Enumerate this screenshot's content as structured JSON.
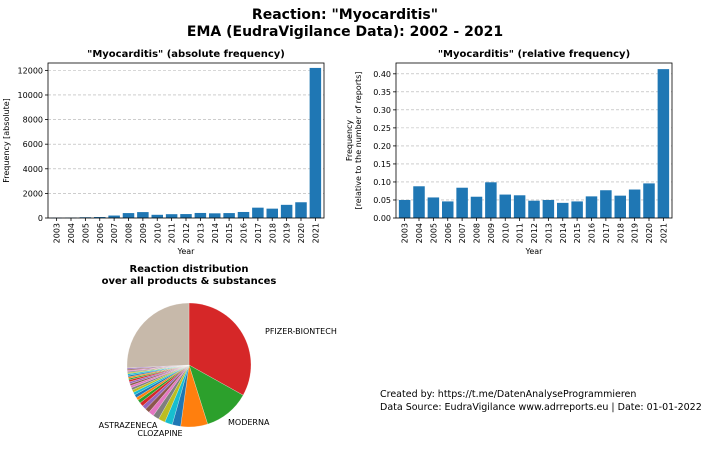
{
  "title_line1": "Reaction: \"Myocarditis\"",
  "title_line2": "EMA (EudraVigilance Data): 2002 - 2021",
  "credits": {
    "line1": "Created by: https://t.me/DatenAnalyseProgrammieren",
    "line2": "Data Source: EudraVigilance www.adrreports.eu | Date: 01-01-2022"
  },
  "colors": {
    "bar": "#1f77b4",
    "grid": "#b0b0b0"
  },
  "chart_data": [
    {
      "type": "bar",
      "title": "\"Myocarditis\" (absolute frequency)",
      "xlabel": "Year",
      "ylabel": "Frequency [absolute]",
      "categories": [
        "2003",
        "2004",
        "2005",
        "2006",
        "2007",
        "2008",
        "2009",
        "2010",
        "2011",
        "2012",
        "2013",
        "2014",
        "2015",
        "2016",
        "2017",
        "2018",
        "2019",
        "2020",
        "2021"
      ],
      "values": [
        20,
        30,
        60,
        80,
        200,
        400,
        480,
        260,
        310,
        320,
        410,
        380,
        400,
        490,
        840,
        760,
        1070,
        1280,
        12200
      ],
      "ylim": [
        0,
        12600
      ],
      "yticks": [
        0,
        2000,
        4000,
        6000,
        8000,
        10000,
        12000
      ],
      "ytick_labels": [
        "0",
        "2000",
        "4000",
        "6000",
        "8000",
        "10000",
        "12000"
      ],
      "grid": "y-dashed"
    },
    {
      "type": "bar",
      "title": "\"Myocarditis\" (relative frequency)",
      "xlabel": "Year",
      "ylabel": [
        "Frequency",
        "[relative to the number of reports]"
      ],
      "categories": [
        "2003",
        "2004",
        "2005",
        "2006",
        "2007",
        "2008",
        "2009",
        "2010",
        "2011",
        "2012",
        "2013",
        "2014",
        "2015",
        "2016",
        "2017",
        "2018",
        "2019",
        "2020",
        "2021"
      ],
      "values": [
        0.05,
        0.088,
        0.057,
        0.046,
        0.084,
        0.059,
        0.099,
        0.065,
        0.063,
        0.048,
        0.05,
        0.042,
        0.046,
        0.06,
        0.077,
        0.062,
        0.079,
        0.096,
        0.413
      ],
      "ylim": [
        0,
        0.43
      ],
      "yticks": [
        0,
        0.05,
        0.1,
        0.15,
        0.2,
        0.25,
        0.3,
        0.35,
        0.4
      ],
      "ytick_labels": [
        "0.00",
        "0.05",
        "0.10",
        "0.15",
        "0.20",
        "0.25",
        "0.30",
        "0.35",
        "0.40"
      ],
      "grid": "y-dashed"
    },
    {
      "type": "pie",
      "title": [
        "Reaction distribution",
        "over all products & substances"
      ],
      "slices": [
        {
          "label": "PFIZER-BIONTECH",
          "value": 33.0,
          "color": "#d62728"
        },
        {
          "label": "MODERNA",
          "value": 12.0,
          "color": "#2ca02c"
        },
        {
          "label": "CLOZAPINE",
          "value": 7.0,
          "color": "#ff7f0e"
        },
        {
          "label": "ASTRAZENECA",
          "value": 2.2,
          "color": "#1f77b4"
        },
        {
          "label": "",
          "value": 2.0,
          "color": "#17becf"
        },
        {
          "label": "",
          "value": 1.8,
          "color": "#bcbd22"
        },
        {
          "label": "",
          "value": 1.6,
          "color": "#7f7f7f"
        },
        {
          "label": "",
          "value": 1.4,
          "color": "#e377c2"
        },
        {
          "label": "",
          "value": 1.2,
          "color": "#8c564b"
        },
        {
          "label": "",
          "value": 1.1,
          "color": "#9467bd"
        },
        {
          "label": "",
          "value": 1.0,
          "color": "#d62728"
        },
        {
          "label": "",
          "value": 0.9,
          "color": "#2ca02c"
        },
        {
          "label": "",
          "value": 0.8,
          "color": "#ff7f0e"
        },
        {
          "label": "",
          "value": 0.8,
          "color": "#1f77b4"
        },
        {
          "label": "",
          "value": 0.7,
          "color": "#17becf"
        },
        {
          "label": "",
          "value": 0.7,
          "color": "#bcbd22"
        },
        {
          "label": "",
          "value": 0.6,
          "color": "#7f7f7f"
        },
        {
          "label": "",
          "value": 0.6,
          "color": "#e377c2"
        },
        {
          "label": "",
          "value": 0.5,
          "color": "#8c564b"
        },
        {
          "label": "",
          "value": 0.5,
          "color": "#9467bd"
        },
        {
          "label": "",
          "value": 0.5,
          "color": "#d62728"
        },
        {
          "label": "",
          "value": 0.4,
          "color": "#2ca02c"
        },
        {
          "label": "",
          "value": 0.4,
          "color": "#ff7f0e"
        },
        {
          "label": "",
          "value": 0.4,
          "color": "#1f77b4"
        },
        {
          "label": "",
          "value": 0.4,
          "color": "#17becf"
        },
        {
          "label": "",
          "value": 0.3,
          "color": "#bcbd22"
        },
        {
          "label": "",
          "value": 0.3,
          "color": "#7f7f7f"
        },
        {
          "label": "",
          "value": 0.3,
          "color": "#e377c2"
        },
        {
          "label": "",
          "value": 0.3,
          "color": "#8c564b"
        },
        {
          "label": "",
          "value": 0.3,
          "color": "#9467bd"
        },
        {
          "label": "",
          "value": 25.7,
          "color": "#c7b9aa"
        }
      ],
      "start_angle_deg": 90,
      "direction": "clockwise"
    }
  ]
}
